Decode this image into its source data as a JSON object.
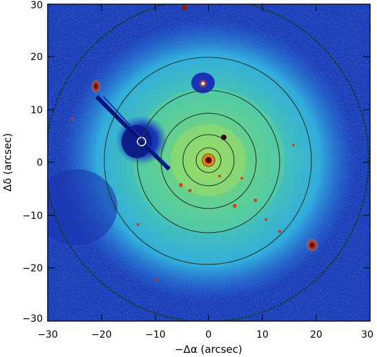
{
  "figure": {
    "xlabel": "−Δα (arcsec)",
    "ylabel": "Δδ (arcsec)",
    "x_ticks": [
      "−30",
      "−20",
      "−10",
      "0",
      "10",
      "20",
      "30"
    ],
    "y_ticks": [
      "30",
      "20",
      "10",
      "0",
      "−10",
      "−20",
      "−30"
    ],
    "xlim": [
      -30,
      30
    ],
    "ylim": [
      -30,
      30
    ],
    "colormap": [
      "#1a2a9a",
      "#1e56d6",
      "#2e8fe8",
      "#35c7d8",
      "#5fe09a",
      "#c7e64a",
      "#f0c020",
      "#d8321a",
      "#6a0c0a"
    ],
    "contour_color": "#1a3a2a"
  }
}
